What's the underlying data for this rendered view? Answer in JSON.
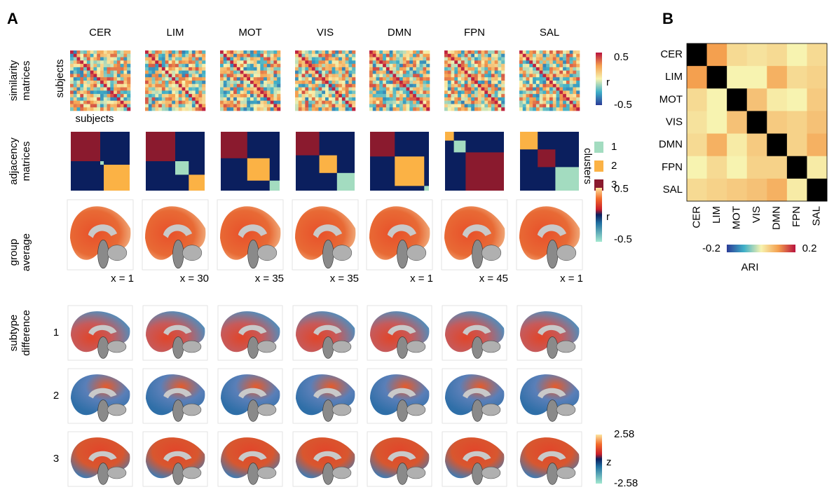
{
  "panel_a": {
    "label": "A",
    "networks": [
      "CER",
      "LIM",
      "MOT",
      "VIS",
      "DMN",
      "FPN",
      "SAL"
    ],
    "row_labels": {
      "similarity": [
        "similarity",
        "matrices"
      ],
      "adjacency": [
        "adjacency",
        "matrices"
      ],
      "group": [
        "group",
        "average"
      ],
      "subtype": [
        "subtype",
        "difference"
      ]
    },
    "subjects_label": "subjects",
    "similarity_colorbar": {
      "label": "r",
      "ticks": [
        0.5,
        -0.5
      ]
    },
    "clusters": {
      "label": "clusters",
      "ids": [
        1,
        2,
        3
      ],
      "colors": [
        "#a3dcc0",
        "#fbb245",
        "#8a1a2e"
      ],
      "background": "#0b1f5e"
    },
    "adjacency": [
      {
        "blocks": [
          {
            "cluster": 3,
            "size": 0.5
          },
          {
            "cluster": 1,
            "size": 0.06
          },
          {
            "cluster": 2,
            "size": 0.44
          }
        ]
      },
      {
        "blocks": [
          {
            "cluster": 3,
            "size": 0.5
          },
          {
            "cluster": 1,
            "size": 0.23
          },
          {
            "cluster": 2,
            "size": 0.27
          }
        ]
      },
      {
        "blocks": [
          {
            "cluster": 3,
            "size": 0.45
          },
          {
            "cluster": 2,
            "size": 0.38
          },
          {
            "cluster": 1,
            "size": 0.17
          }
        ]
      },
      {
        "blocks": [
          {
            "cluster": 3,
            "size": 0.4
          },
          {
            "cluster": 2,
            "size": 0.3
          },
          {
            "cluster": 1,
            "size": 0.3
          }
        ]
      },
      {
        "blocks": [
          {
            "cluster": 3,
            "size": 0.42
          },
          {
            "cluster": 2,
            "size": 0.5
          },
          {
            "cluster": 1,
            "size": 0.08
          }
        ]
      },
      {
        "blocks": [
          {
            "cluster": 2,
            "size": 0.15
          },
          {
            "cluster": 1,
            "size": 0.2
          },
          {
            "cluster": 3,
            "size": 0.65
          }
        ]
      },
      {
        "blocks": [
          {
            "cluster": 2,
            "size": 0.3
          },
          {
            "cluster": 3,
            "size": 0.3
          },
          {
            "cluster": 1,
            "size": 0.4
          }
        ]
      }
    ],
    "slices": [
      "x = 1",
      "x = 30",
      "x = 35",
      "x = 35",
      "x = 1",
      "x = 45",
      "x = 1"
    ],
    "group_colorbar": {
      "label": "r",
      "ticks": [
        0.5,
        -0.5
      ]
    },
    "subtypes": [
      "1",
      "2",
      "3"
    ],
    "subtype_colorbar": {
      "label": "z",
      "ticks": [
        2.58,
        -2.58
      ]
    }
  },
  "panel_b": {
    "label": "B",
    "type": "heatmap",
    "labels": [
      "CER",
      "LIM",
      "MOT",
      "VIS",
      "DMN",
      "FPN",
      "SAL"
    ],
    "values": [
      [
        null,
        0.1,
        0.03,
        0.02,
        0.03,
        0.0,
        0.03
      ],
      [
        0.1,
        null,
        0.0,
        0.0,
        0.08,
        0.03,
        0.04
      ],
      [
        0.03,
        0.0,
        null,
        0.06,
        0.01,
        0.0,
        0.05
      ],
      [
        0.02,
        0.0,
        0.06,
        null,
        0.05,
        0.04,
        0.06
      ],
      [
        0.03,
        0.08,
        0.01,
        0.05,
        null,
        0.04,
        0.08
      ],
      [
        0.0,
        0.03,
        0.0,
        0.04,
        0.04,
        null,
        0.01
      ],
      [
        0.03,
        0.04,
        0.05,
        0.06,
        0.08,
        0.01,
        null
      ]
    ],
    "diagonal_color": "#000000",
    "colormap": [
      "#2b3b97",
      "#3fb0c8",
      "#f7f3b0",
      "#f4a04f",
      "#b8123e"
    ],
    "clim": [
      -0.2,
      0.2
    ],
    "colorbar": {
      "label": "ARI",
      "ticks": [
        -0.2,
        0.2
      ]
    }
  }
}
